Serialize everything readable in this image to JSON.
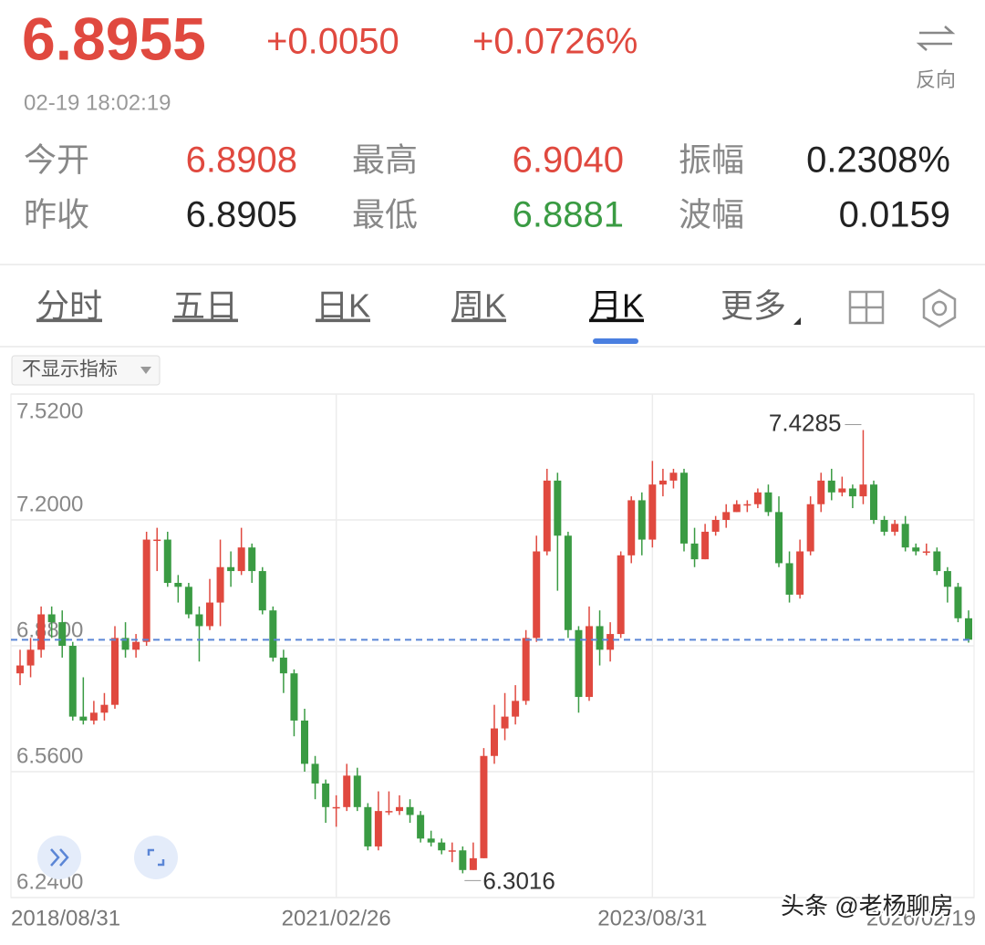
{
  "header": {
    "price": "6.8955",
    "change": "+0.0050",
    "change_pct": "+0.0726%",
    "time": "02-19 18:02:19",
    "reverse": "反向"
  },
  "stats": {
    "rows": [
      [
        {
          "label": "今开",
          "value": "6.8908"
        },
        {
          "label": "最高",
          "value": "6.9040"
        },
        {
          "label": "振幅",
          "value": "0.2308%"
        }
      ],
      [
        {
          "label": "昨收",
          "value": "6.8905"
        },
        {
          "label": "最低",
          "value": "6.8881"
        },
        {
          "label": "波幅",
          "value": "0.0159"
        }
      ]
    ]
  },
  "tabs": [
    "分时",
    "五日",
    "日K",
    "周K",
    "月K",
    "更多"
  ],
  "active_tab": "月K",
  "indicator_dropdown": "不显示指标",
  "watermark": "头条 @老杨聊房",
  "chart_data": {
    "type": "candlestick",
    "categories": [
      "2018/08/31",
      null,
      null,
      null,
      null,
      null,
      null,
      null,
      null,
      null,
      null,
      null,
      null,
      null,
      null,
      null,
      null,
      null,
      null,
      null,
      null,
      null,
      null,
      null,
      null,
      null,
      null,
      null,
      null,
      null,
      "2021/02/26",
      null,
      null,
      null,
      null,
      null,
      null,
      null,
      null,
      null,
      null,
      null,
      null,
      null,
      null,
      null,
      null,
      null,
      null,
      null,
      null,
      null,
      null,
      null,
      null,
      null,
      null,
      null,
      null,
      null,
      "2023/08/31",
      null,
      null,
      null,
      null,
      null,
      null,
      null,
      null,
      null,
      null,
      null,
      null,
      null,
      null,
      null,
      null,
      null,
      null,
      null,
      null,
      null,
      null,
      null,
      null,
      null,
      null,
      null,
      null,
      null,
      "2026/02/19"
    ],
    "open": [
      6.81,
      6.83,
      6.87,
      6.96,
      6.94,
      6.88,
      6.7,
      6.69,
      6.71,
      6.73,
      6.9,
      6.87,
      6.89,
      7.15,
      7.15,
      7.04,
      7.03,
      6.96,
      6.93,
      6.99,
      7.08,
      7.07,
      7.13,
      7.07,
      6.97,
      6.85,
      6.81,
      6.69,
      6.58,
      6.53,
      6.47,
      6.47,
      6.55,
      6.47,
      6.37,
      6.46,
      6.46,
      6.47,
      6.45,
      6.39,
      6.38,
      6.36,
      6.36,
      6.31,
      6.34,
      6.6,
      6.67,
      6.7,
      6.74,
      6.9,
      7.12,
      7.3,
      7.16,
      6.92,
      6.75,
      6.93,
      6.87,
      6.91,
      7.11,
      7.25,
      7.15,
      7.29,
      7.3,
      7.32,
      7.14,
      7.1,
      7.17,
      7.2,
      7.22,
      7.24,
      7.24,
      7.27,
      7.22,
      7.09,
      7.01,
      7.12,
      7.24,
      7.3,
      7.27,
      7.28,
      7.26,
      7.29,
      7.2,
      7.17,
      7.19,
      7.13,
      7.12,
      7.12,
      7.07,
      7.03,
      6.95
    ],
    "high": [
      6.87,
      6.9,
      6.98,
      6.98,
      6.97,
      6.89,
      6.8,
      6.74,
      6.76,
      6.93,
      6.94,
      6.91,
      7.17,
      7.18,
      7.17,
      7.06,
      7.04,
      6.98,
      7.05,
      7.15,
      7.12,
      7.18,
      7.14,
      7.08,
      6.98,
      6.87,
      6.82,
      6.72,
      6.6,
      6.54,
      6.5,
      6.58,
      6.57,
      6.48,
      6.51,
      6.51,
      6.5,
      6.49,
      6.46,
      6.41,
      6.39,
      6.38,
      6.37,
      6.38,
      6.62,
      6.73,
      6.76,
      6.78,
      6.92,
      7.16,
      7.33,
      7.32,
      7.17,
      6.93,
      6.98,
      6.97,
      6.94,
      7.12,
      7.26,
      7.27,
      7.35,
      7.33,
      7.33,
      7.33,
      7.18,
      7.19,
      7.21,
      7.24,
      7.25,
      7.25,
      7.28,
      7.29,
      7.26,
      7.12,
      7.15,
      7.26,
      7.32,
      7.33,
      7.31,
      7.29,
      7.4285,
      7.3,
      7.21,
      7.2,
      7.21,
      7.14,
      7.14,
      7.13,
      7.08,
      7.04,
      6.97
    ],
    "low": [
      6.78,
      6.8,
      6.85,
      6.9,
      6.85,
      6.69,
      6.68,
      6.68,
      6.69,
      6.72,
      6.85,
      6.85,
      6.88,
      7.07,
      7.03,
      6.99,
      6.95,
      6.84,
      6.92,
      6.93,
      7.03,
      7.06,
      7.04,
      6.96,
      6.84,
      6.76,
      6.65,
      6.56,
      6.49,
      6.43,
      6.42,
      6.46,
      6.46,
      6.36,
      6.36,
      6.45,
      6.45,
      6.43,
      6.38,
      6.37,
      6.35,
      6.33,
      6.3016,
      6.31,
      6.34,
      6.58,
      6.64,
      6.68,
      6.73,
      6.89,
      7.11,
      7.02,
      6.9,
      6.71,
      6.74,
      6.83,
      6.84,
      6.9,
      7.09,
      7.11,
      7.13,
      7.26,
      7.28,
      7.12,
      7.08,
      7.1,
      7.16,
      7.18,
      7.22,
      7.22,
      7.23,
      7.21,
      7.08,
      6.99,
      7.0,
      7.11,
      7.22,
      7.25,
      7.26,
      7.23,
      7.24,
      7.19,
      7.16,
      7.16,
      7.12,
      7.11,
      7.11,
      7.06,
      6.99,
      6.94,
      6.8881
    ],
    "close": [
      6.83,
      6.87,
      6.96,
      6.94,
      6.88,
      6.7,
      6.69,
      6.71,
      6.73,
      6.9,
      6.87,
      6.89,
      7.15,
      7.15,
      7.04,
      7.03,
      6.96,
      6.93,
      6.99,
      7.08,
      7.07,
      7.13,
      7.07,
      6.97,
      6.85,
      6.81,
      6.69,
      6.58,
      6.53,
      6.47,
      6.47,
      6.55,
      6.47,
      6.37,
      6.46,
      6.46,
      6.47,
      6.45,
      6.39,
      6.38,
      6.36,
      6.36,
      6.31,
      6.34,
      6.6,
      6.67,
      6.7,
      6.74,
      6.9,
      7.12,
      7.3,
      7.16,
      6.92,
      6.75,
      6.93,
      6.87,
      6.91,
      7.11,
      7.25,
      7.15,
      7.29,
      7.3,
      7.32,
      7.14,
      7.1,
      7.17,
      7.2,
      7.22,
      7.24,
      7.24,
      7.27,
      7.22,
      7.09,
      7.01,
      7.12,
      7.24,
      7.3,
      7.27,
      7.28,
      7.26,
      7.29,
      7.2,
      7.17,
      7.19,
      7.13,
      7.12,
      7.12,
      7.07,
      7.03,
      6.95,
      6.8955
    ],
    "up_color": "#e0493f",
    "down_color": "#3a9b43",
    "reference_color": "#5b86d6",
    "ylim": [
      6.24,
      7.52
    ],
    "yticks": [
      {
        "value": 6.24,
        "label": "6.2400"
      },
      {
        "value": 6.56,
        "label": "6.5600"
      },
      {
        "value": 6.88,
        "label": "6.8800"
      },
      {
        "value": 7.2,
        "label": "7.2000"
      },
      {
        "value": 7.52,
        "label": "7.5200"
      }
    ],
    "grid": true
  }
}
